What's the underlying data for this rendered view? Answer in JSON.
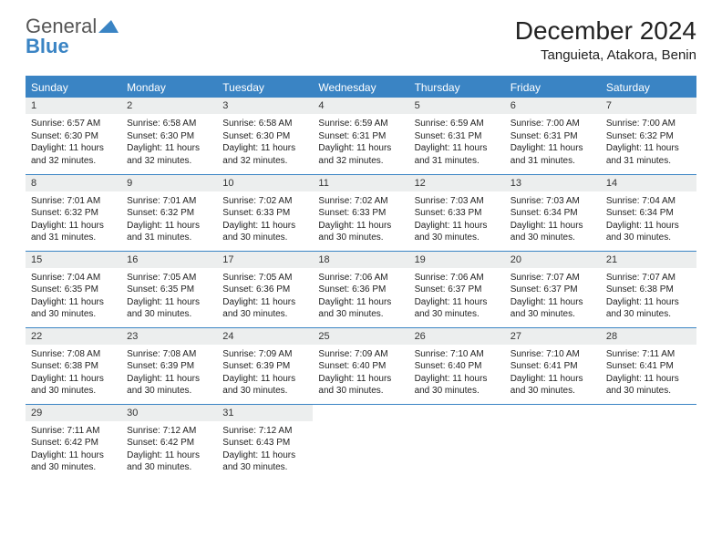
{
  "logo": {
    "first": "General",
    "second": "Blue"
  },
  "title": "December 2024",
  "location": "Tanguieta, Atakora, Benin",
  "colors": {
    "accent": "#3a84c4",
    "headerRowBg": "#eceeee",
    "text": "#222222",
    "logoGray": "#555555"
  },
  "dayNames": [
    "Sunday",
    "Monday",
    "Tuesday",
    "Wednesday",
    "Thursday",
    "Friday",
    "Saturday"
  ],
  "weeks": [
    [
      {
        "n": "1",
        "sr": "6:57 AM",
        "ss": "6:30 PM",
        "dl": "11 hours and 32 minutes."
      },
      {
        "n": "2",
        "sr": "6:58 AM",
        "ss": "6:30 PM",
        "dl": "11 hours and 32 minutes."
      },
      {
        "n": "3",
        "sr": "6:58 AM",
        "ss": "6:30 PM",
        "dl": "11 hours and 32 minutes."
      },
      {
        "n": "4",
        "sr": "6:59 AM",
        "ss": "6:31 PM",
        "dl": "11 hours and 32 minutes."
      },
      {
        "n": "5",
        "sr": "6:59 AM",
        "ss": "6:31 PM",
        "dl": "11 hours and 31 minutes."
      },
      {
        "n": "6",
        "sr": "7:00 AM",
        "ss": "6:31 PM",
        "dl": "11 hours and 31 minutes."
      },
      {
        "n": "7",
        "sr": "7:00 AM",
        "ss": "6:32 PM",
        "dl": "11 hours and 31 minutes."
      }
    ],
    [
      {
        "n": "8",
        "sr": "7:01 AM",
        "ss": "6:32 PM",
        "dl": "11 hours and 31 minutes."
      },
      {
        "n": "9",
        "sr": "7:01 AM",
        "ss": "6:32 PM",
        "dl": "11 hours and 31 minutes."
      },
      {
        "n": "10",
        "sr": "7:02 AM",
        "ss": "6:33 PM",
        "dl": "11 hours and 30 minutes."
      },
      {
        "n": "11",
        "sr": "7:02 AM",
        "ss": "6:33 PM",
        "dl": "11 hours and 30 minutes."
      },
      {
        "n": "12",
        "sr": "7:03 AM",
        "ss": "6:33 PM",
        "dl": "11 hours and 30 minutes."
      },
      {
        "n": "13",
        "sr": "7:03 AM",
        "ss": "6:34 PM",
        "dl": "11 hours and 30 minutes."
      },
      {
        "n": "14",
        "sr": "7:04 AM",
        "ss": "6:34 PM",
        "dl": "11 hours and 30 minutes."
      }
    ],
    [
      {
        "n": "15",
        "sr": "7:04 AM",
        "ss": "6:35 PM",
        "dl": "11 hours and 30 minutes."
      },
      {
        "n": "16",
        "sr": "7:05 AM",
        "ss": "6:35 PM",
        "dl": "11 hours and 30 minutes."
      },
      {
        "n": "17",
        "sr": "7:05 AM",
        "ss": "6:36 PM",
        "dl": "11 hours and 30 minutes."
      },
      {
        "n": "18",
        "sr": "7:06 AM",
        "ss": "6:36 PM",
        "dl": "11 hours and 30 minutes."
      },
      {
        "n": "19",
        "sr": "7:06 AM",
        "ss": "6:37 PM",
        "dl": "11 hours and 30 minutes."
      },
      {
        "n": "20",
        "sr": "7:07 AM",
        "ss": "6:37 PM",
        "dl": "11 hours and 30 minutes."
      },
      {
        "n": "21",
        "sr": "7:07 AM",
        "ss": "6:38 PM",
        "dl": "11 hours and 30 minutes."
      }
    ],
    [
      {
        "n": "22",
        "sr": "7:08 AM",
        "ss": "6:38 PM",
        "dl": "11 hours and 30 minutes."
      },
      {
        "n": "23",
        "sr": "7:08 AM",
        "ss": "6:39 PM",
        "dl": "11 hours and 30 minutes."
      },
      {
        "n": "24",
        "sr": "7:09 AM",
        "ss": "6:39 PM",
        "dl": "11 hours and 30 minutes."
      },
      {
        "n": "25",
        "sr": "7:09 AM",
        "ss": "6:40 PM",
        "dl": "11 hours and 30 minutes."
      },
      {
        "n": "26",
        "sr": "7:10 AM",
        "ss": "6:40 PM",
        "dl": "11 hours and 30 minutes."
      },
      {
        "n": "27",
        "sr": "7:10 AM",
        "ss": "6:41 PM",
        "dl": "11 hours and 30 minutes."
      },
      {
        "n": "28",
        "sr": "7:11 AM",
        "ss": "6:41 PM",
        "dl": "11 hours and 30 minutes."
      }
    ],
    [
      {
        "n": "29",
        "sr": "7:11 AM",
        "ss": "6:42 PM",
        "dl": "11 hours and 30 minutes."
      },
      {
        "n": "30",
        "sr": "7:12 AM",
        "ss": "6:42 PM",
        "dl": "11 hours and 30 minutes."
      },
      {
        "n": "31",
        "sr": "7:12 AM",
        "ss": "6:43 PM",
        "dl": "11 hours and 30 minutes."
      },
      null,
      null,
      null,
      null
    ]
  ],
  "labels": {
    "sunrise": "Sunrise:",
    "sunset": "Sunset:",
    "daylight": "Daylight:"
  }
}
